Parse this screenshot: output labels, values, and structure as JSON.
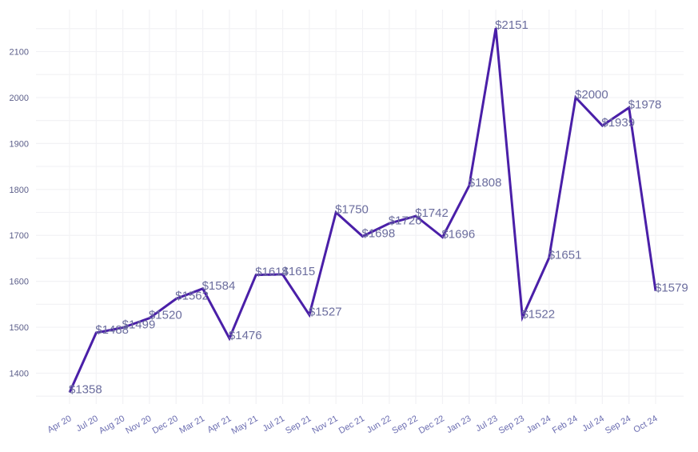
{
  "chart_data": {
    "type": "line",
    "title": "",
    "xlabel": "",
    "ylabel": "",
    "categories": [
      "Apr 20",
      "Jul 20",
      "Aug 20",
      "Nov 20",
      "Dec 20",
      "Mar 21",
      "Apr 21",
      "May 21",
      "Jul 21",
      "Sep 21",
      "Nov 21",
      "Dec 21",
      "Jun 22",
      "Sep 22",
      "Dec 22",
      "Jan 23",
      "Jul 23",
      "Sep 23",
      "Jan 24",
      "Feb 24",
      "Jul 24",
      "Sep 24",
      "Oct 24"
    ],
    "series": [
      {
        "values": [
          1358,
          1488,
          1499,
          1520,
          1562,
          1584,
          1476,
          1614,
          1615,
          1527,
          1750,
          1698,
          1726,
          1742,
          1696,
          1808,
          2151,
          1522,
          1651,
          2000,
          1939,
          1978,
          1579
        ],
        "data_labels": [
          "$1358",
          "$1488",
          "$1499",
          "$1520",
          "$1562",
          "$1584",
          "$1476",
          "$1614",
          "$1615",
          "$1527",
          "$1750",
          "$1698",
          "$1726",
          "$1742",
          "$1696",
          "$1808",
          "$2151",
          "$1522",
          "$1651",
          "$2000",
          "$1939",
          "$1978",
          "$1579"
        ]
      }
    ],
    "yticks": [
      1400,
      1500,
      1600,
      1700,
      1800,
      1900,
      2000,
      2100
    ],
    "ylim": [
      1315,
      2180
    ],
    "grid": true,
    "legend": "none",
    "line_color": "#4a1fa8"
  }
}
